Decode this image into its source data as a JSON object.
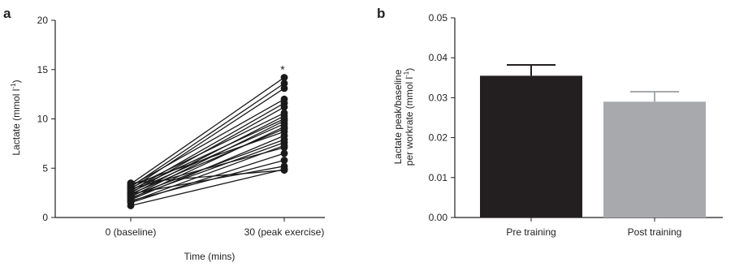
{
  "chart_data": [
    {
      "panel": "a",
      "type": "line",
      "xlabel": "Time (mins)",
      "ylabel": "Lactate (mmol l",
      "ylabel_superscript": "-1",
      "ylabel_close": ")",
      "categories": [
        "0 (baseline)",
        "30 (peak exercise)"
      ],
      "ylim": [
        0,
        20
      ],
      "yticks": [
        "0",
        "5",
        "10",
        "15",
        "20"
      ],
      "annotation": "*",
      "series": [
        {
          "values": [
            3.4,
            14.2
          ]
        },
        {
          "values": [
            3.1,
            13.6
          ]
        },
        {
          "values": [
            2.9,
            13.1
          ]
        },
        {
          "values": [
            3.2,
            12.0
          ]
        },
        {
          "values": [
            2.7,
            11.6
          ]
        },
        {
          "values": [
            2.5,
            11.2
          ]
        },
        {
          "values": [
            3.0,
            10.6
          ]
        },
        {
          "values": [
            2.3,
            10.3
          ]
        },
        {
          "values": [
            2.8,
            10.0
          ]
        },
        {
          "values": [
            2.1,
            9.8
          ]
        },
        {
          "values": [
            2.6,
            9.5
          ]
        },
        {
          "values": [
            1.9,
            9.2
          ]
        },
        {
          "values": [
            2.4,
            9.0
          ]
        },
        {
          "values": [
            3.3,
            8.7
          ]
        },
        {
          "values": [
            1.8,
            8.3
          ]
        },
        {
          "values": [
            2.2,
            7.9
          ]
        },
        {
          "values": [
            2.0,
            7.6
          ]
        },
        {
          "values": [
            1.6,
            7.3
          ]
        },
        {
          "values": [
            2.9,
            7.1
          ]
        },
        {
          "values": [
            1.5,
            6.5
          ]
        },
        {
          "values": [
            1.7,
            5.8
          ]
        },
        {
          "values": [
            2.4,
            5.2
          ]
        },
        {
          "values": [
            1.2,
            4.9
          ]
        },
        {
          "values": [
            3.5,
            4.8
          ]
        }
      ]
    },
    {
      "panel": "b",
      "type": "bar",
      "ylabel_line1": "Lactate peak/baseline",
      "ylabel_line2": "per workrate (mmol l",
      "ylabel_superscript": "-1",
      "ylabel_close": ")",
      "categories": [
        "Pre training",
        "Post training"
      ],
      "values": [
        0.0355,
        0.029
      ],
      "errors": [
        0.0027,
        0.0025
      ],
      "colors": [
        "#231f20",
        "#a7a9ac"
      ],
      "ylim": [
        0,
        0.05
      ],
      "yticks": [
        "0.00",
        "0.01",
        "0.02",
        "0.03",
        "0.04",
        "0.05"
      ]
    }
  ],
  "panels": {
    "a": "a",
    "b": "b"
  }
}
